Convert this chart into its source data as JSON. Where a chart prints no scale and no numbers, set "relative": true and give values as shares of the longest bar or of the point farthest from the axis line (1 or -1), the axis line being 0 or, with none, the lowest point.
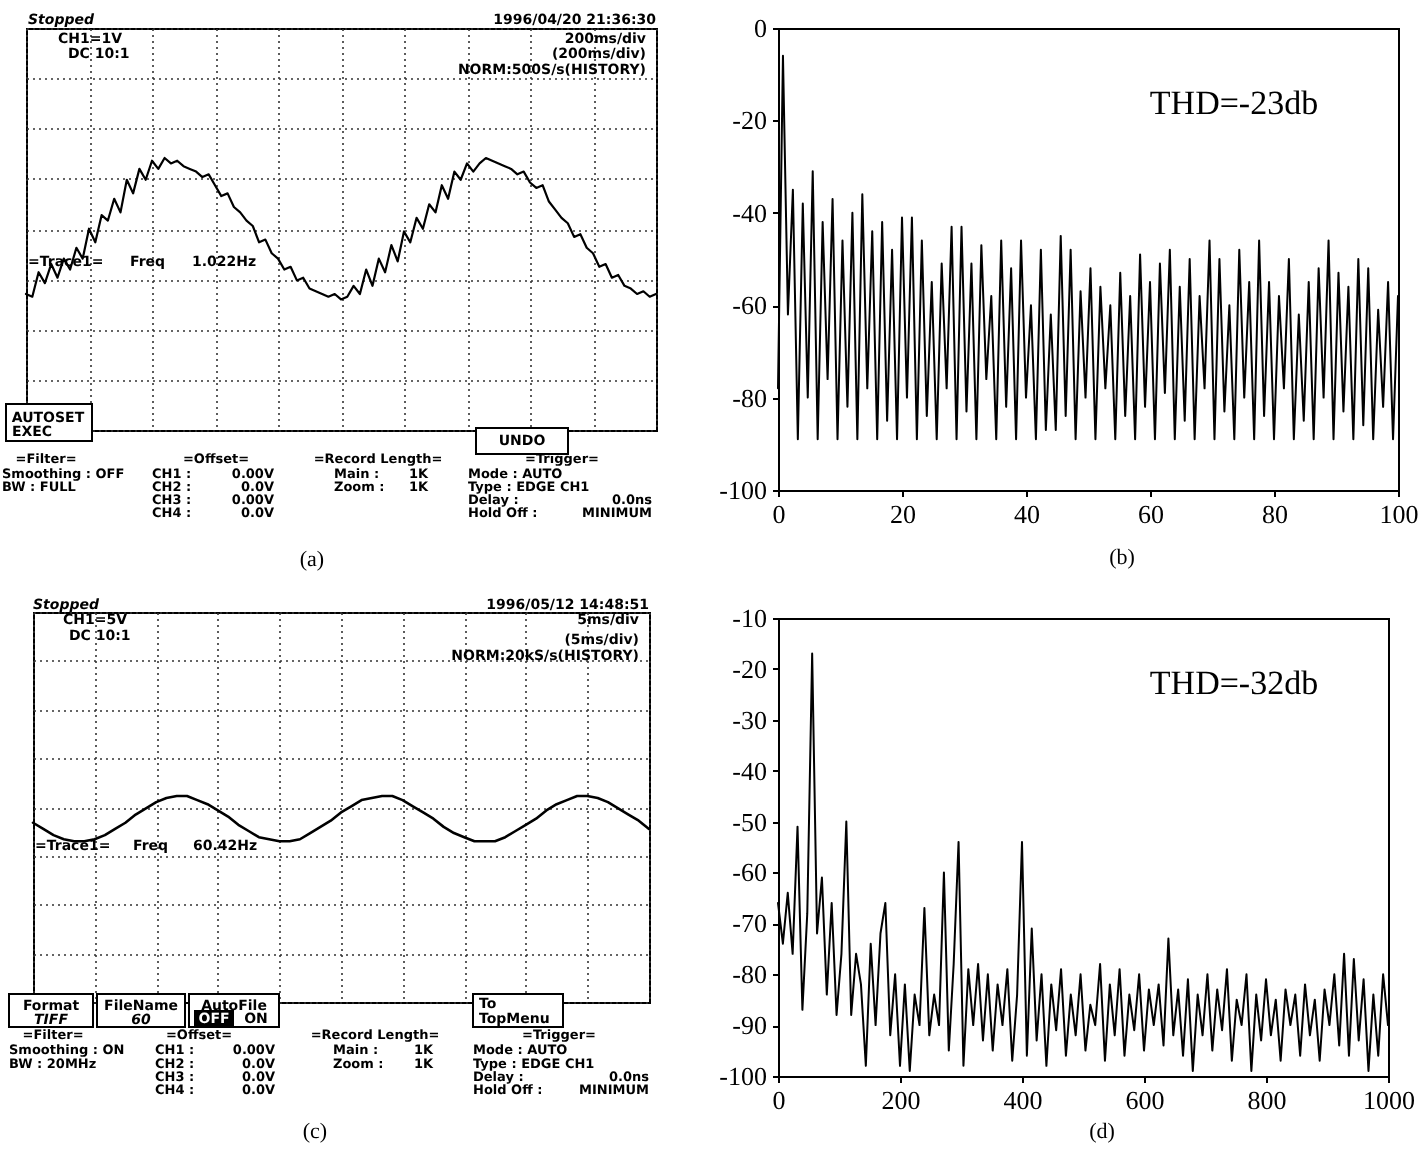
{
  "chart_data": [
    {
      "type": "line",
      "relative": true,
      "grid": true,
      "categories": [
        null,
        null,
        null,
        null,
        null,
        null,
        null,
        null,
        null,
        null,
        null,
        null,
        null,
        null,
        null,
        null,
        null,
        null,
        null,
        null,
        null,
        null,
        null,
        null,
        null,
        null,
        null,
        null,
        null,
        null,
        null,
        null,
        null,
        null,
        null,
        null,
        null,
        null,
        null,
        null,
        null,
        null,
        null,
        null,
        null,
        null,
        null,
        null,
        null,
        null,
        null,
        null,
        null,
        null,
        null,
        null,
        null,
        null,
        null,
        null,
        null,
        null,
        null,
        null,
        null,
        null,
        null,
        null,
        null,
        null,
        null,
        null,
        null,
        null,
        null,
        null,
        null,
        null,
        null,
        null,
        null,
        null,
        null,
        null,
        null,
        null,
        null,
        null,
        null,
        null,
        null,
        null,
        null,
        null,
        null,
        null,
        null,
        null,
        null,
        null,
        null
      ],
      "series": [
        {
          "color": "#000000",
          "values": [
            0.5,
            0.49,
            0.58,
            0.54,
            0.61,
            0.56,
            0.63,
            0.59,
            0.67,
            0.63,
            0.74,
            0.69,
            0.79,
            0.77,
            0.85,
            0.8,
            0.92,
            0.87,
            0.96,
            0.92,
            0.99,
            0.96,
            1.0,
            0.98,
            0.99,
            0.97,
            0.96,
            0.95,
            0.93,
            0.94,
            0.9,
            0.86,
            0.87,
            0.82,
            0.8,
            0.77,
            0.75,
            0.69,
            0.7,
            0.65,
            0.63,
            0.59,
            0.6,
            0.55,
            0.56,
            0.52,
            0.51,
            0.5,
            0.49,
            0.5,
            0.48,
            0.49,
            0.53,
            0.5,
            0.59,
            0.53,
            0.63,
            0.58,
            0.68,
            0.62,
            0.73,
            0.69,
            0.78,
            0.74,
            0.83,
            0.8,
            0.9,
            0.85,
            0.95,
            0.92,
            0.98,
            0.95,
            0.98,
            1.0,
            0.99,
            0.98,
            0.97,
            0.96,
            0.94,
            0.95,
            0.91,
            0.89,
            0.9,
            0.84,
            0.81,
            0.78,
            0.76,
            0.71,
            0.72,
            0.67,
            0.65,
            0.6,
            0.61,
            0.56,
            0.57,
            0.53,
            0.52,
            0.5,
            0.51,
            0.49,
            0.5
          ]
        }
      ],
      "annotations": [
        "Stopped",
        "1996/04/20 21:36:30",
        "CH1=1V",
        "DC 10:1",
        "200ms/div",
        "(200ms/div)",
        "NORM:500S/s(HISTORY)",
        "=Trace1=",
        "Freq",
        "1.022Hz",
        "AUTOSET",
        "EXEC",
        "UNDO",
        "=Filter=",
        "Smoothing : OFF",
        "BW : FULL",
        "=Offset=",
        "CH1 :",
        "0.00V",
        "CH2 :",
        "0.0V",
        "CH3 :",
        "0.00V",
        "CH4 :",
        "0.0V",
        "=Record Length=",
        "Main :",
        "1K",
        "Zoom :",
        "1K",
        "=Trigger=",
        "Mode : AUTO",
        "Type : EDGE CH1",
        "Delay :",
        "0.0ns",
        "Hold Off :",
        "MINIMUM",
        "(a)"
      ]
    },
    {
      "type": "line",
      "xlim": [
        0,
        100
      ],
      "ylim": [
        -100,
        0
      ],
      "xticks": [
        0,
        20,
        40,
        60,
        80,
        100
      ],
      "yticks": [
        0,
        -20,
        -40,
        -60,
        -80,
        -100
      ],
      "x": [
        0,
        0.8,
        1.6,
        2.4,
        3.2,
        4,
        4.8,
        5.6,
        6.4,
        7.2,
        8,
        8.8,
        9.6,
        10.4,
        11.2,
        12,
        12.8,
        13.6,
        14.4,
        15.2,
        16,
        16.8,
        17.6,
        18.4,
        19.2,
        20,
        20.8,
        21.6,
        22.4,
        23.2,
        24,
        24.8,
        25.6,
        26.4,
        27.2,
        28,
        28.8,
        29.6,
        30.4,
        31.2,
        32,
        32.8,
        33.6,
        34.4,
        35.2,
        36,
        36.8,
        37.6,
        38.4,
        39.2,
        40,
        40.8,
        41.6,
        42.4,
        43.2,
        44,
        44.8,
        45.6,
        46.4,
        47.2,
        48,
        48.8,
        49.6,
        50.4,
        51.2,
        52,
        52.8,
        53.6,
        54.4,
        55.2,
        56,
        56.8,
        57.6,
        58.4,
        59.2,
        60,
        60.8,
        61.6,
        62.4,
        63.2,
        64,
        64.8,
        65.6,
        66.4,
        67.2,
        68,
        68.8,
        69.6,
        70.4,
        71.2,
        72,
        72.8,
        73.6,
        74.4,
        75.2,
        76,
        76.8,
        77.6,
        78.4,
        79.2,
        80,
        80.8,
        81.6,
        82.4,
        83.2,
        84,
        84.8,
        85.6,
        86.4,
        87.2,
        88,
        88.8,
        89.6,
        90.4,
        91.2,
        92,
        92.8,
        93.6,
        94.4,
        95.2,
        96,
        96.8,
        97.6,
        98.4,
        99.2,
        100
      ],
      "series": [
        {
          "color": "#000000",
          "values": [
            -78,
            -6,
            -62,
            -35,
            -89,
            -38,
            -80,
            -31,
            -89,
            -42,
            -76,
            -37,
            -89,
            -46,
            -82,
            -40,
            -89,
            -36,
            -78,
            -44,
            -89,
            -42,
            -85,
            -48,
            -89,
            -41,
            -80,
            -41,
            -89,
            -46,
            -84,
            -55,
            -89,
            -51,
            -78,
            -43,
            -89,
            -43,
            -83,
            -51,
            -89,
            -47,
            -76,
            -58,
            -89,
            -46,
            -82,
            -52,
            -89,
            -46,
            -80,
            -60,
            -89,
            -48,
            -87,
            -62,
            -87,
            -45,
            -84,
            -48,
            -89,
            -57,
            -80,
            -52,
            -89,
            -56,
            -78,
            -60,
            -89,
            -53,
            -84,
            -58,
            -89,
            -49,
            -82,
            -55,
            -89,
            -51,
            -79,
            -48,
            -89,
            -56,
            -85,
            -50,
            -89,
            -58,
            -78,
            -46,
            -89,
            -50,
            -83,
            -60,
            -89,
            -48,
            -80,
            -55,
            -89,
            -46,
            -84,
            -55,
            -89,
            -58,
            -78,
            -50,
            -89,
            -62,
            -85,
            -55,
            -89,
            -52,
            -80,
            -46,
            -89,
            -53,
            -83,
            -56,
            -89,
            -50,
            -86,
            -52,
            -89,
            -61,
            -82,
            -55,
            -89,
            -58
          ]
        }
      ],
      "annotations": [
        "THD=-23db",
        "(b)"
      ]
    },
    {
      "type": "line",
      "relative": true,
      "grid": true,
      "categories": [
        null,
        null,
        null,
        null,
        null,
        null,
        null,
        null,
        null,
        null,
        null,
        null,
        null,
        null,
        null,
        null,
        null,
        null,
        null,
        null,
        null,
        null,
        null,
        null,
        null,
        null,
        null,
        null,
        null,
        null,
        null,
        null,
        null,
        null,
        null,
        null,
        null,
        null,
        null,
        null,
        null,
        null,
        null,
        null,
        null,
        null,
        null,
        null,
        null,
        null,
        null,
        null,
        null,
        null,
        null,
        null,
        null,
        null,
        null,
        null,
        null
      ],
      "series": [
        {
          "color": "#000000",
          "values": [
            0.87,
            0.84,
            0.81,
            0.79,
            0.78,
            0.78,
            0.79,
            0.81,
            0.84,
            0.87,
            0.91,
            0.94,
            0.97,
            0.99,
            1.0,
            1.0,
            0.98,
            0.96,
            0.93,
            0.9,
            0.86,
            0.83,
            0.8,
            0.79,
            0.78,
            0.78,
            0.79,
            0.82,
            0.85,
            0.88,
            0.92,
            0.95,
            0.98,
            0.99,
            1.0,
            1.0,
            0.98,
            0.95,
            0.92,
            0.89,
            0.85,
            0.82,
            0.8,
            0.78,
            0.78,
            0.78,
            0.8,
            0.83,
            0.86,
            0.89,
            0.93,
            0.96,
            0.98,
            1.0,
            1.0,
            0.99,
            0.97,
            0.94,
            0.91,
            0.88,
            0.84
          ]
        }
      ],
      "annotations": [
        "Stopped",
        "1996/05/12 14:48:51",
        "CH1=5V",
        "DC 10:1",
        "5ms/div",
        "(5ms/div)",
        "NORM:20kS/s(HISTORY)",
        "=Trace1=",
        "Freq",
        "60.42Hz",
        "Format",
        "TIFF",
        "FileName",
        "60",
        "AutoFile",
        "OFF",
        "ON",
        "To",
        "TopMenu",
        "=Filter=",
        "Smoothing : ON",
        "BW : 20MHz",
        "=Offset=",
        "CH1 :",
        "0.00V",
        "CH2 :",
        "0.0V",
        "CH3 :",
        "0.0V",
        "CH4 :",
        "0.0V",
        "=Record Length=",
        "Main :",
        "1K",
        "Zoom :",
        "1K",
        "=Trigger=",
        "Mode : AUTO",
        "Type : EDGE CH1",
        "Delay :",
        "0.0ns",
        "Hold Off :",
        "MINIMUM",
        "(c)"
      ]
    },
    {
      "type": "line",
      "xlim": [
        0,
        1000
      ],
      "ylim": [
        -100,
        -10
      ],
      "xticks": [
        0,
        200,
        400,
        600,
        800,
        1000
      ],
      "yticks": [
        -10,
        -20,
        -30,
        -40,
        -50,
        -60,
        -70,
        -80,
        -90,
        -100
      ],
      "x": [
        0,
        8,
        16,
        24,
        32,
        40,
        48,
        56,
        64,
        72,
        80,
        88,
        96,
        104,
        112,
        120,
        128,
        136,
        144,
        152,
        160,
        168,
        176,
        184,
        192,
        200,
        208,
        216,
        224,
        232,
        240,
        248,
        256,
        264,
        272,
        280,
        288,
        296,
        304,
        312,
        320,
        328,
        336,
        344,
        352,
        360,
        368,
        376,
        384,
        392,
        400,
        408,
        416,
        424,
        432,
        440,
        448,
        456,
        464,
        472,
        480,
        488,
        496,
        504,
        512,
        520,
        528,
        536,
        544,
        552,
        560,
        568,
        576,
        584,
        592,
        600,
        608,
        616,
        624,
        632,
        640,
        648,
        656,
        664,
        672,
        680,
        688,
        696,
        704,
        712,
        720,
        728,
        736,
        744,
        752,
        760,
        768,
        776,
        784,
        792,
        800,
        808,
        816,
        824,
        832,
        840,
        848,
        856,
        864,
        872,
        880,
        888,
        896,
        904,
        912,
        920,
        928,
        936,
        944,
        952,
        960,
        968,
        976,
        984,
        992,
        1000
      ],
      "series": [
        {
          "color": "#000000",
          "values": [
            -66,
            -74,
            -64,
            -76,
            -51,
            -87,
            -68,
            -17,
            -72,
            -61,
            -84,
            -66,
            -88,
            -76,
            -50,
            -88,
            -76,
            -82,
            -98,
            -74,
            -90,
            -72,
            -66,
            -92,
            -80,
            -98,
            -82,
            -99,
            -84,
            -90,
            -67,
            -92,
            -84,
            -90,
            -60,
            -95,
            -78,
            -54,
            -98,
            -79,
            -90,
            -78,
            -93,
            -80,
            -95,
            -82,
            -90,
            -79,
            -97,
            -84,
            -54,
            -96,
            -71,
            -93,
            -80,
            -98,
            -82,
            -91,
            -79,
            -96,
            -84,
            -92,
            -80,
            -95,
            -86,
            -90,
            -78,
            -97,
            -82,
            -92,
            -79,
            -96,
            -84,
            -91,
            -80,
            -95,
            -83,
            -90,
            -82,
            -94,
            -73,
            -92,
            -83,
            -96,
            -81,
            -99,
            -84,
            -92,
            -80,
            -95,
            -83,
            -91,
            -79,
            -97,
            -85,
            -90,
            -80,
            -99,
            -84,
            -93,
            -81,
            -92,
            -85,
            -97,
            -83,
            -90,
            -84,
            -96,
            -82,
            -92,
            -85,
            -97,
            -83,
            -90,
            -80,
            -94,
            -76,
            -96,
            -77,
            -93,
            -81,
            -99,
            -84,
            -96,
            -80,
            -90
          ]
        }
      ],
      "annotations": [
        "THD=-32db",
        "(d)"
      ]
    }
  ]
}
